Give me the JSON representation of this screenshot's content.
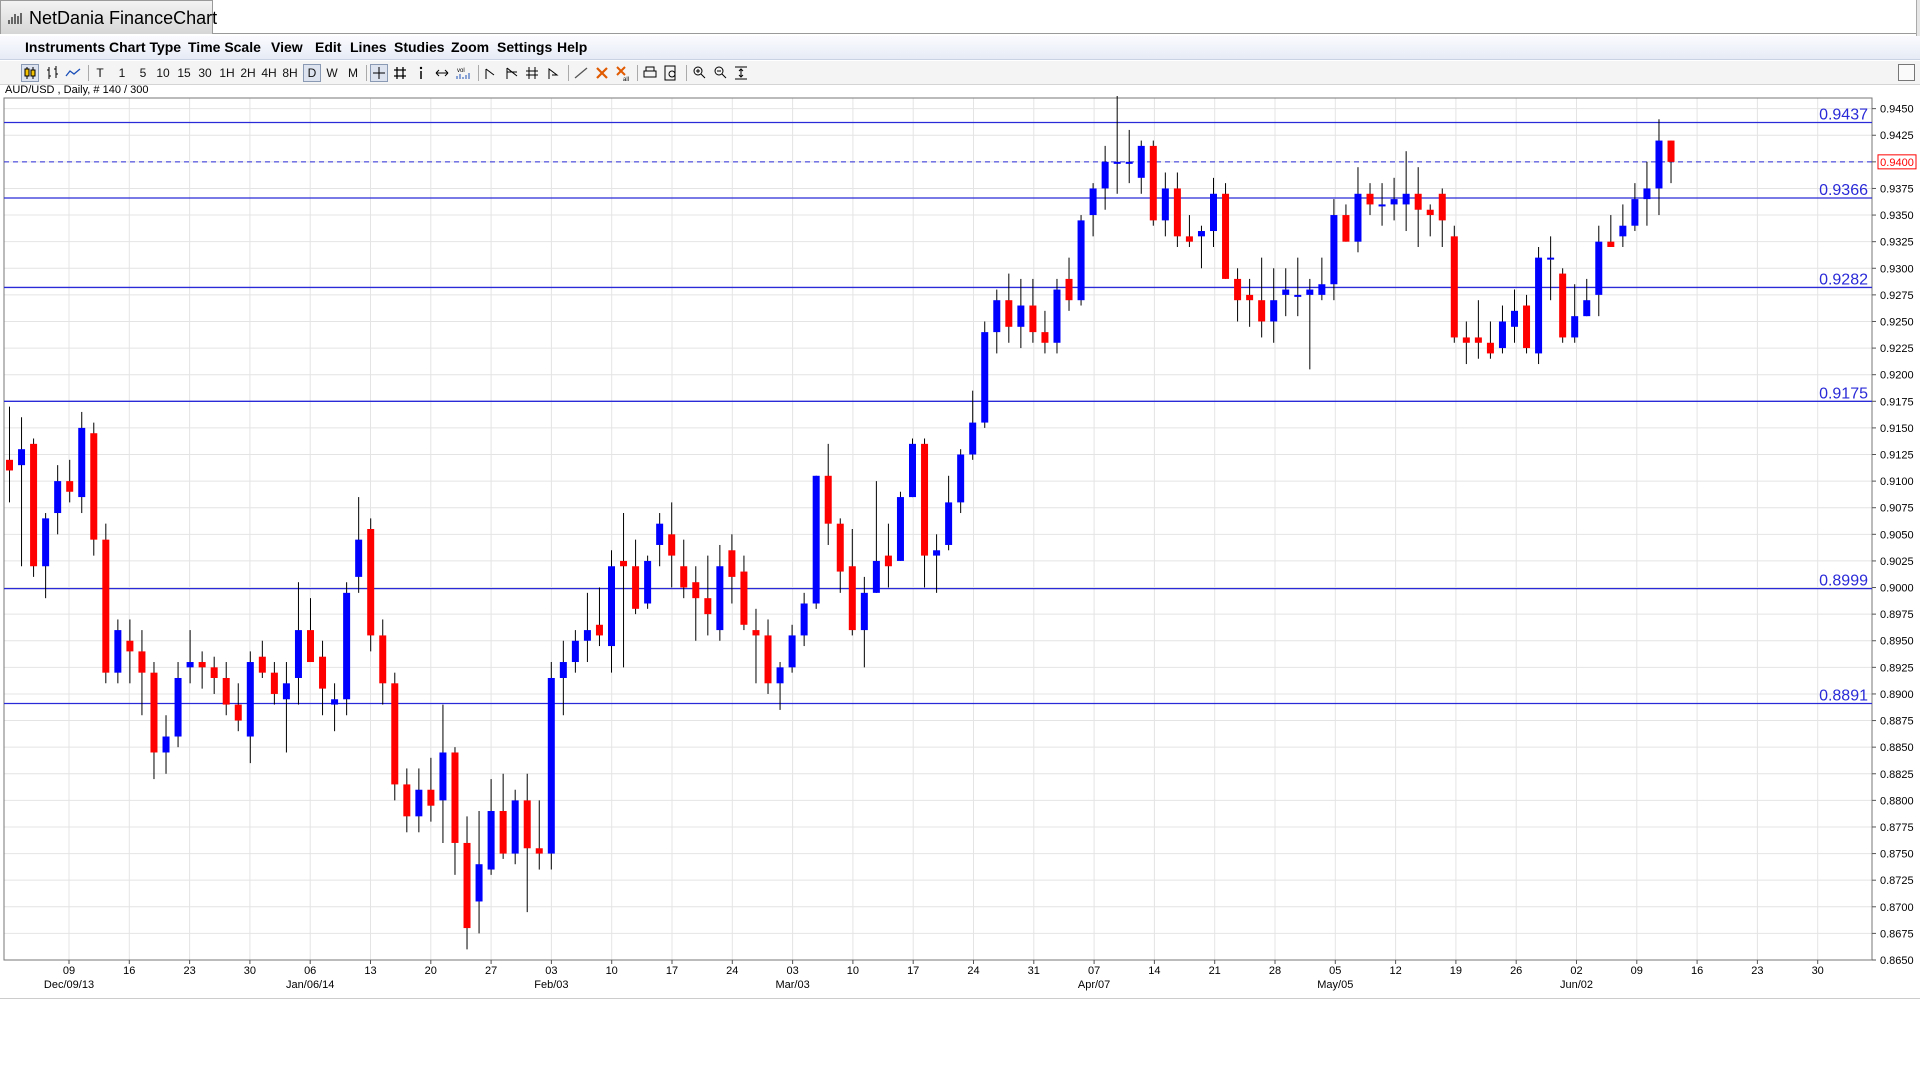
{
  "app": {
    "title": "NetDania FinanceChart"
  },
  "menu": [
    {
      "id": "instruments",
      "label": "Instruments"
    },
    {
      "id": "chart-type",
      "label": "Chart Type"
    },
    {
      "id": "time-scale",
      "label": "Time Scale"
    },
    {
      "id": "view",
      "label": "View"
    },
    {
      "id": "edit",
      "label": "Edit"
    },
    {
      "id": "lines",
      "label": "Lines"
    },
    {
      "id": "studies",
      "label": "Studies"
    },
    {
      "id": "zoom",
      "label": "Zoom"
    },
    {
      "id": "settings",
      "label": "Settings"
    },
    {
      "id": "help",
      "label": "Help"
    }
  ],
  "toolbar": {
    "timeframes": [
      {
        "id": "tick",
        "label": "T"
      },
      {
        "id": "1",
        "label": "1"
      },
      {
        "id": "5",
        "label": "5"
      },
      {
        "id": "10",
        "label": "10"
      },
      {
        "id": "15",
        "label": "15"
      },
      {
        "id": "30",
        "label": "30"
      },
      {
        "id": "1h",
        "label": "1H"
      },
      {
        "id": "2h",
        "label": "2H"
      },
      {
        "id": "4h",
        "label": "4H"
      },
      {
        "id": "8h",
        "label": "8H"
      },
      {
        "id": "d",
        "label": "D"
      },
      {
        "id": "w",
        "label": "W"
      },
      {
        "id": "m",
        "label": "M"
      }
    ],
    "selected_timeframe": "D",
    "icons": [
      "candlestick-icon",
      "bar-chart-icon",
      "line-chart-icon",
      "crosshair-icon",
      "grid-icon",
      "info-icon",
      "pan-icon",
      "volume-icon",
      "trend-line-icon",
      "fibonacci-icon",
      "gann-icon",
      "arrow-icon",
      "draw-line-icon",
      "delete-icon",
      "delete-all-icon",
      "print-icon",
      "print-preview-icon",
      "zoom-in-icon",
      "zoom-out-icon",
      "fit-icon"
    ]
  },
  "instrument_label": "AUD/USD , Daily, # 140 / 300",
  "colors": {
    "up": "#0000ff",
    "down": "#ff0000",
    "wick": "#000000",
    "level_line": "#2a2ad8",
    "level_text": "#2a2ad8",
    "current_price": "#ff0000",
    "grid": "#e4e4e4"
  },
  "chart_data": {
    "type": "candlestick",
    "instrument": "AUD/USD",
    "timeframe": "Daily",
    "ylim": [
      0.865,
      0.946
    ],
    "y_ticks": [
      "0.9450",
      "0.9425",
      "0.9400",
      "0.9375",
      "0.9350",
      "0.9325",
      "0.9300",
      "0.9275",
      "0.9250",
      "0.9225",
      "0.9200",
      "0.9175",
      "0.9150",
      "0.9125",
      "0.9100",
      "0.9075",
      "0.9050",
      "0.9025",
      "0.9000",
      "0.8975",
      "0.8950",
      "0.8925",
      "0.8900",
      "0.8875",
      "0.8850",
      "0.8825",
      "0.8800",
      "0.8775",
      "0.8750",
      "0.8725",
      "0.8700",
      "0.8675",
      "0.8650"
    ],
    "x_ticks": [
      {
        "label": "09",
        "week": 1
      },
      {
        "label": "16",
        "week": 2
      },
      {
        "label": "23",
        "week": 3
      },
      {
        "label": "30",
        "week": 4
      },
      {
        "label": "06",
        "week": 5
      },
      {
        "label": "13",
        "week": 6
      },
      {
        "label": "20",
        "week": 7
      },
      {
        "label": "27",
        "week": 8
      },
      {
        "label": "03",
        "week": 9
      },
      {
        "label": "10",
        "week": 10
      },
      {
        "label": "17",
        "week": 11
      },
      {
        "label": "24",
        "week": 12
      },
      {
        "label": "03",
        "week": 13
      },
      {
        "label": "10",
        "week": 14
      },
      {
        "label": "17",
        "week": 15
      },
      {
        "label": "24",
        "week": 16
      },
      {
        "label": "31",
        "week": 17
      },
      {
        "label": "07",
        "week": 18
      },
      {
        "label": "14",
        "week": 19
      },
      {
        "label": "21",
        "week": 20
      },
      {
        "label": "28",
        "week": 21
      },
      {
        "label": "05",
        "week": 22
      },
      {
        "label": "12",
        "week": 23
      },
      {
        "label": "19",
        "week": 24
      },
      {
        "label": "26",
        "week": 25
      },
      {
        "label": "02",
        "week": 26
      },
      {
        "label": "09",
        "week": 27
      },
      {
        "label": "16",
        "week": 28
      },
      {
        "label": "23",
        "week": 29
      },
      {
        "label": "30",
        "week": 30
      }
    ],
    "month_labels": [
      {
        "label": "Dec/09/13",
        "week": 1
      },
      {
        "label": "Jan/06/14",
        "week": 5
      },
      {
        "label": "Feb/03",
        "week": 9
      },
      {
        "label": "Mar/03",
        "week": 13
      },
      {
        "label": "Apr/07",
        "week": 18
      },
      {
        "label": "May/05",
        "week": 22
      },
      {
        "label": "Jun/02",
        "week": 26
      }
    ],
    "horizontal_levels": [
      {
        "value": 0.9437,
        "label": "0.9437"
      },
      {
        "value": 0.9366,
        "label": "0.9366"
      },
      {
        "value": 0.9282,
        "label": "0.9282"
      },
      {
        "value": 0.9175,
        "label": "0.9175"
      },
      {
        "value": 0.8999,
        "label": "0.8999"
      },
      {
        "value": 0.8891,
        "label": "0.8891"
      }
    ],
    "current_price": {
      "value": 0.94,
      "label": "0.9400"
    },
    "candles": [
      [
        0.912,
        0.917,
        0.908,
        0.911
      ],
      [
        0.9115,
        0.916,
        0.902,
        0.913
      ],
      [
        0.9135,
        0.914,
        0.901,
        0.902
      ],
      [
        0.902,
        0.907,
        0.899,
        0.9065
      ],
      [
        0.907,
        0.9115,
        0.905,
        0.91
      ],
      [
        0.91,
        0.912,
        0.908,
        0.909
      ],
      [
        0.9085,
        0.9165,
        0.907,
        0.915
      ],
      [
        0.9145,
        0.9155,
        0.903,
        0.9045
      ],
      [
        0.9045,
        0.906,
        0.891,
        0.892
      ],
      [
        0.892,
        0.897,
        0.891,
        0.896
      ],
      [
        0.895,
        0.897,
        0.891,
        0.894
      ],
      [
        0.894,
        0.896,
        0.888,
        0.892
      ],
      [
        0.892,
        0.893,
        0.882,
        0.8845
      ],
      [
        0.8845,
        0.888,
        0.8825,
        0.886
      ],
      [
        0.886,
        0.893,
        0.885,
        0.8915
      ],
      [
        0.8925,
        0.896,
        0.891,
        0.893
      ],
      [
        0.893,
        0.894,
        0.8905,
        0.8925
      ],
      [
        0.8925,
        0.8935,
        0.89,
        0.8915
      ],
      [
        0.8915,
        0.893,
        0.888,
        0.889
      ],
      [
        0.889,
        0.891,
        0.8865,
        0.8875
      ],
      [
        0.886,
        0.894,
        0.8835,
        0.893
      ],
      [
        0.8935,
        0.895,
        0.8915,
        0.892
      ],
      [
        0.892,
        0.893,
        0.889,
        0.89
      ],
      [
        0.8895,
        0.893,
        0.8845,
        0.891
      ],
      [
        0.8915,
        0.9005,
        0.889,
        0.896
      ],
      [
        0.896,
        0.899,
        0.893,
        0.893
      ],
      [
        0.8935,
        0.895,
        0.888,
        0.8905
      ],
      [
        0.889,
        0.891,
        0.8865,
        0.8895
      ],
      [
        0.8895,
        0.9005,
        0.888,
        0.8995
      ],
      [
        0.901,
        0.9085,
        0.8995,
        0.9045
      ],
      [
        0.9055,
        0.9065,
        0.894,
        0.8955
      ],
      [
        0.8955,
        0.897,
        0.889,
        0.891
      ],
      [
        0.891,
        0.892,
        0.88,
        0.8815
      ],
      [
        0.8815,
        0.883,
        0.877,
        0.8785
      ],
      [
        0.8785,
        0.883,
        0.877,
        0.881
      ],
      [
        0.881,
        0.884,
        0.878,
        0.8795
      ],
      [
        0.88,
        0.889,
        0.876,
        0.8845
      ],
      [
        0.8845,
        0.885,
        0.873,
        0.876
      ],
      [
        0.876,
        0.8785,
        0.866,
        0.868
      ],
      [
        0.8705,
        0.879,
        0.8675,
        0.874
      ],
      [
        0.8735,
        0.882,
        0.873,
        0.879
      ],
      [
        0.879,
        0.8825,
        0.8745,
        0.875
      ],
      [
        0.875,
        0.881,
        0.874,
        0.88
      ],
      [
        0.88,
        0.8825,
        0.8695,
        0.8755
      ],
      [
        0.8755,
        0.88,
        0.8735,
        0.875
      ],
      [
        0.875,
        0.893,
        0.8735,
        0.8915
      ],
      [
        0.8915,
        0.895,
        0.888,
        0.893
      ],
      [
        0.893,
        0.896,
        0.892,
        0.895
      ],
      [
        0.895,
        0.8995,
        0.893,
        0.896
      ],
      [
        0.8965,
        0.9,
        0.8945,
        0.8955
      ],
      [
        0.8945,
        0.9035,
        0.892,
        0.902
      ],
      [
        0.9025,
        0.907,
        0.8925,
        0.902
      ],
      [
        0.902,
        0.9045,
        0.8975,
        0.898
      ],
      [
        0.8985,
        0.903,
        0.898,
        0.9025
      ],
      [
        0.904,
        0.907,
        0.902,
        0.906
      ],
      [
        0.905,
        0.908,
        0.9,
        0.903
      ],
      [
        0.902,
        0.9045,
        0.899,
        0.9
      ],
      [
        0.9005,
        0.902,
        0.895,
        0.899
      ],
      [
        0.899,
        0.903,
        0.8955,
        0.8975
      ],
      [
        0.896,
        0.904,
        0.895,
        0.902
      ],
      [
        0.9035,
        0.905,
        0.8985,
        0.901
      ],
      [
        0.9015,
        0.903,
        0.896,
        0.8965
      ],
      [
        0.896,
        0.898,
        0.891,
        0.8955
      ],
      [
        0.8955,
        0.897,
        0.89,
        0.891
      ],
      [
        0.891,
        0.893,
        0.8885,
        0.8925
      ],
      [
        0.8925,
        0.8965,
        0.892,
        0.8955
      ],
      [
        0.8955,
        0.8995,
        0.8945,
        0.8985
      ],
      [
        0.8985,
        0.9105,
        0.898,
        0.9105
      ],
      [
        0.9105,
        0.9135,
        0.904,
        0.906
      ],
      [
        0.906,
        0.9065,
        0.8995,
        0.9015
      ],
      [
        0.902,
        0.9055,
        0.8955,
        0.896
      ],
      [
        0.896,
        0.901,
        0.8925,
        0.8995
      ],
      [
        0.8995,
        0.91,
        0.8995,
        0.9025
      ],
      [
        0.903,
        0.906,
        0.9,
        0.902
      ],
      [
        0.9025,
        0.909,
        0.9025,
        0.9085
      ],
      [
        0.9085,
        0.914,
        0.9085,
        0.9135
      ],
      [
        0.9135,
        0.914,
        0.9,
        0.903
      ],
      [
        0.903,
        0.905,
        0.8995,
        0.9035
      ],
      [
        0.904,
        0.9105,
        0.9035,
        0.908
      ],
      [
        0.908,
        0.913,
        0.907,
        0.9125
      ],
      [
        0.9125,
        0.9185,
        0.912,
        0.9155
      ],
      [
        0.9155,
        0.925,
        0.915,
        0.924
      ],
      [
        0.924,
        0.928,
        0.922,
        0.927
      ],
      [
        0.927,
        0.9295,
        0.923,
        0.9245
      ],
      [
        0.9245,
        0.929,
        0.9225,
        0.9265
      ],
      [
        0.9265,
        0.929,
        0.923,
        0.924
      ],
      [
        0.924,
        0.926,
        0.922,
        0.923
      ],
      [
        0.923,
        0.929,
        0.922,
        0.928
      ],
      [
        0.929,
        0.931,
        0.926,
        0.927
      ],
      [
        0.927,
        0.935,
        0.9265,
        0.9345
      ],
      [
        0.935,
        0.938,
        0.933,
        0.9375
      ],
      [
        0.9375,
        0.9415,
        0.9355,
        0.94
      ],
      [
        0.94,
        0.9465,
        0.937,
        0.94
      ],
      [
        0.94,
        0.943,
        0.938,
        0.94
      ],
      [
        0.9385,
        0.942,
        0.937,
        0.9415
      ],
      [
        0.9415,
        0.942,
        0.934,
        0.9345
      ],
      [
        0.9345,
        0.939,
        0.933,
        0.9375
      ],
      [
        0.9375,
        0.939,
        0.932,
        0.933
      ],
      [
        0.933,
        0.935,
        0.932,
        0.9325
      ],
      [
        0.933,
        0.934,
        0.93,
        0.9335
      ],
      [
        0.9335,
        0.9385,
        0.932,
        0.937
      ],
      [
        0.937,
        0.938,
        0.929,
        0.929
      ],
      [
        0.929,
        0.93,
        0.925,
        0.927
      ],
      [
        0.9275,
        0.929,
        0.9245,
        0.927
      ],
      [
        0.927,
        0.931,
        0.9235,
        0.925
      ],
      [
        0.925,
        0.93,
        0.923,
        0.927
      ],
      [
        0.9275,
        0.93,
        0.9255,
        0.928
      ],
      [
        0.9275,
        0.931,
        0.9255,
        0.9275
      ],
      [
        0.9275,
        0.929,
        0.9205,
        0.928
      ],
      [
        0.9275,
        0.931,
        0.927,
        0.9285
      ],
      [
        0.9285,
        0.9365,
        0.927,
        0.935
      ],
      [
        0.935,
        0.936,
        0.9325,
        0.9325
      ],
      [
        0.9325,
        0.9395,
        0.9315,
        0.937
      ],
      [
        0.937,
        0.938,
        0.935,
        0.936
      ],
      [
        0.936,
        0.938,
        0.934,
        0.936
      ],
      [
        0.936,
        0.9385,
        0.9345,
        0.9365
      ],
      [
        0.936,
        0.941,
        0.9335,
        0.937
      ],
      [
        0.937,
        0.9395,
        0.932,
        0.9355
      ],
      [
        0.9355,
        0.936,
        0.933,
        0.935
      ],
      [
        0.937,
        0.9375,
        0.932,
        0.9345
      ],
      [
        0.933,
        0.934,
        0.923,
        0.9235
      ],
      [
        0.9235,
        0.925,
        0.921,
        0.923
      ],
      [
        0.9235,
        0.927,
        0.9215,
        0.923
      ],
      [
        0.923,
        0.925,
        0.9215,
        0.922
      ],
      [
        0.9225,
        0.9265,
        0.922,
        0.925
      ],
      [
        0.9245,
        0.928,
        0.923,
        0.926
      ],
      [
        0.9265,
        0.9275,
        0.922,
        0.9225
      ],
      [
        0.922,
        0.932,
        0.921,
        0.931
      ],
      [
        0.931,
        0.933,
        0.927,
        0.931
      ],
      [
        0.9295,
        0.93,
        0.923,
        0.9235
      ],
      [
        0.9235,
        0.9285,
        0.923,
        0.9255
      ],
      [
        0.9255,
        0.929,
        0.9255,
        0.927
      ],
      [
        0.9275,
        0.934,
        0.9255,
        0.9325
      ],
      [
        0.9325,
        0.935,
        0.932,
        0.932
      ],
      [
        0.933,
        0.936,
        0.932,
        0.934
      ],
      [
        0.934,
        0.938,
        0.9335,
        0.9365
      ],
      [
        0.9365,
        0.94,
        0.934,
        0.9375
      ],
      [
        0.9375,
        0.944,
        0.935,
        0.942
      ],
      [
        0.942,
        0.942,
        0.938,
        0.94
      ]
    ]
  }
}
